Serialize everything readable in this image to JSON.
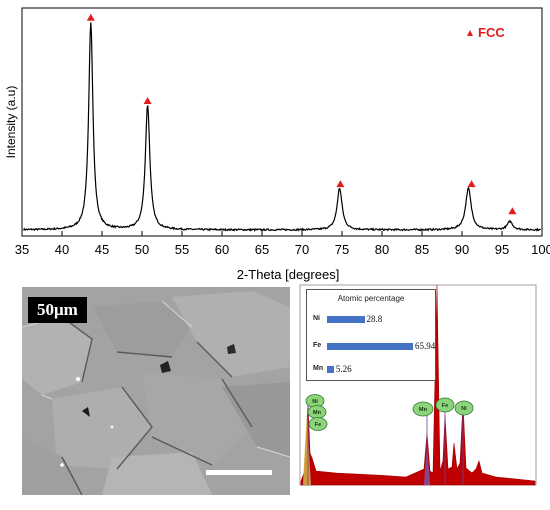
{
  "xrd": {
    "chart_data": {
      "type": "line",
      "xlabel": "2-Theta [degrees]",
      "ylabel": "Intensity (a.u)",
      "xlim": [
        35,
        100
      ],
      "xticks": [
        35,
        40,
        45,
        50,
        55,
        60,
        65,
        70,
        75,
        80,
        85,
        90,
        95,
        100
      ],
      "ylim": [
        0,
        1.0
      ],
      "grid": false,
      "legend": {
        "label": "FCC",
        "color": "#e31b1b",
        "placement": "top-right"
      },
      "series": [
        {
          "color": "#000000",
          "peaks": [
            {
              "x": 43.6,
              "height": 1.0,
              "width": 0.32
            },
            {
              "x": 50.7,
              "height": 0.6,
              "width": 0.34
            },
            {
              "x": 74.7,
              "height": 0.2,
              "width": 0.38
            },
            {
              "x": 90.8,
              "height": 0.2,
              "width": 0.42
            },
            {
              "x": 96.0,
              "height": 0.04,
              "width": 0.4
            }
          ],
          "baseline": 0.01
        }
      ],
      "markers": [
        {
          "x": 43.6,
          "y": 1.03
        },
        {
          "x": 50.7,
          "y": 0.63
        },
        {
          "x": 74.8,
          "y": 0.23
        },
        {
          "x": 91.2,
          "y": 0.23
        },
        {
          "x": 96.3,
          "y": 0.1
        }
      ]
    }
  },
  "sem": {
    "scale_label": "50μm"
  },
  "eds": {
    "inset": {
      "title": "Atomic percentage",
      "elements": [
        {
          "symbol": "Ni",
          "value": 28.8,
          "label": "28.8"
        },
        {
          "symbol": "Fe",
          "value": 65.94,
          "label": "65.94"
        },
        {
          "symbol": "Mn",
          "value": 5.26,
          "label": "5.26"
        }
      ]
    },
    "peak_labels": [
      "Ni",
      "Mn",
      "Fe",
      "Mn",
      "Fe",
      "Ni"
    ],
    "colors": {
      "spectrum": "#c00000",
      "inset_bar": "#4472c4",
      "label_fill": "#8cd37a",
      "label_stroke": "#2e7d32"
    }
  }
}
